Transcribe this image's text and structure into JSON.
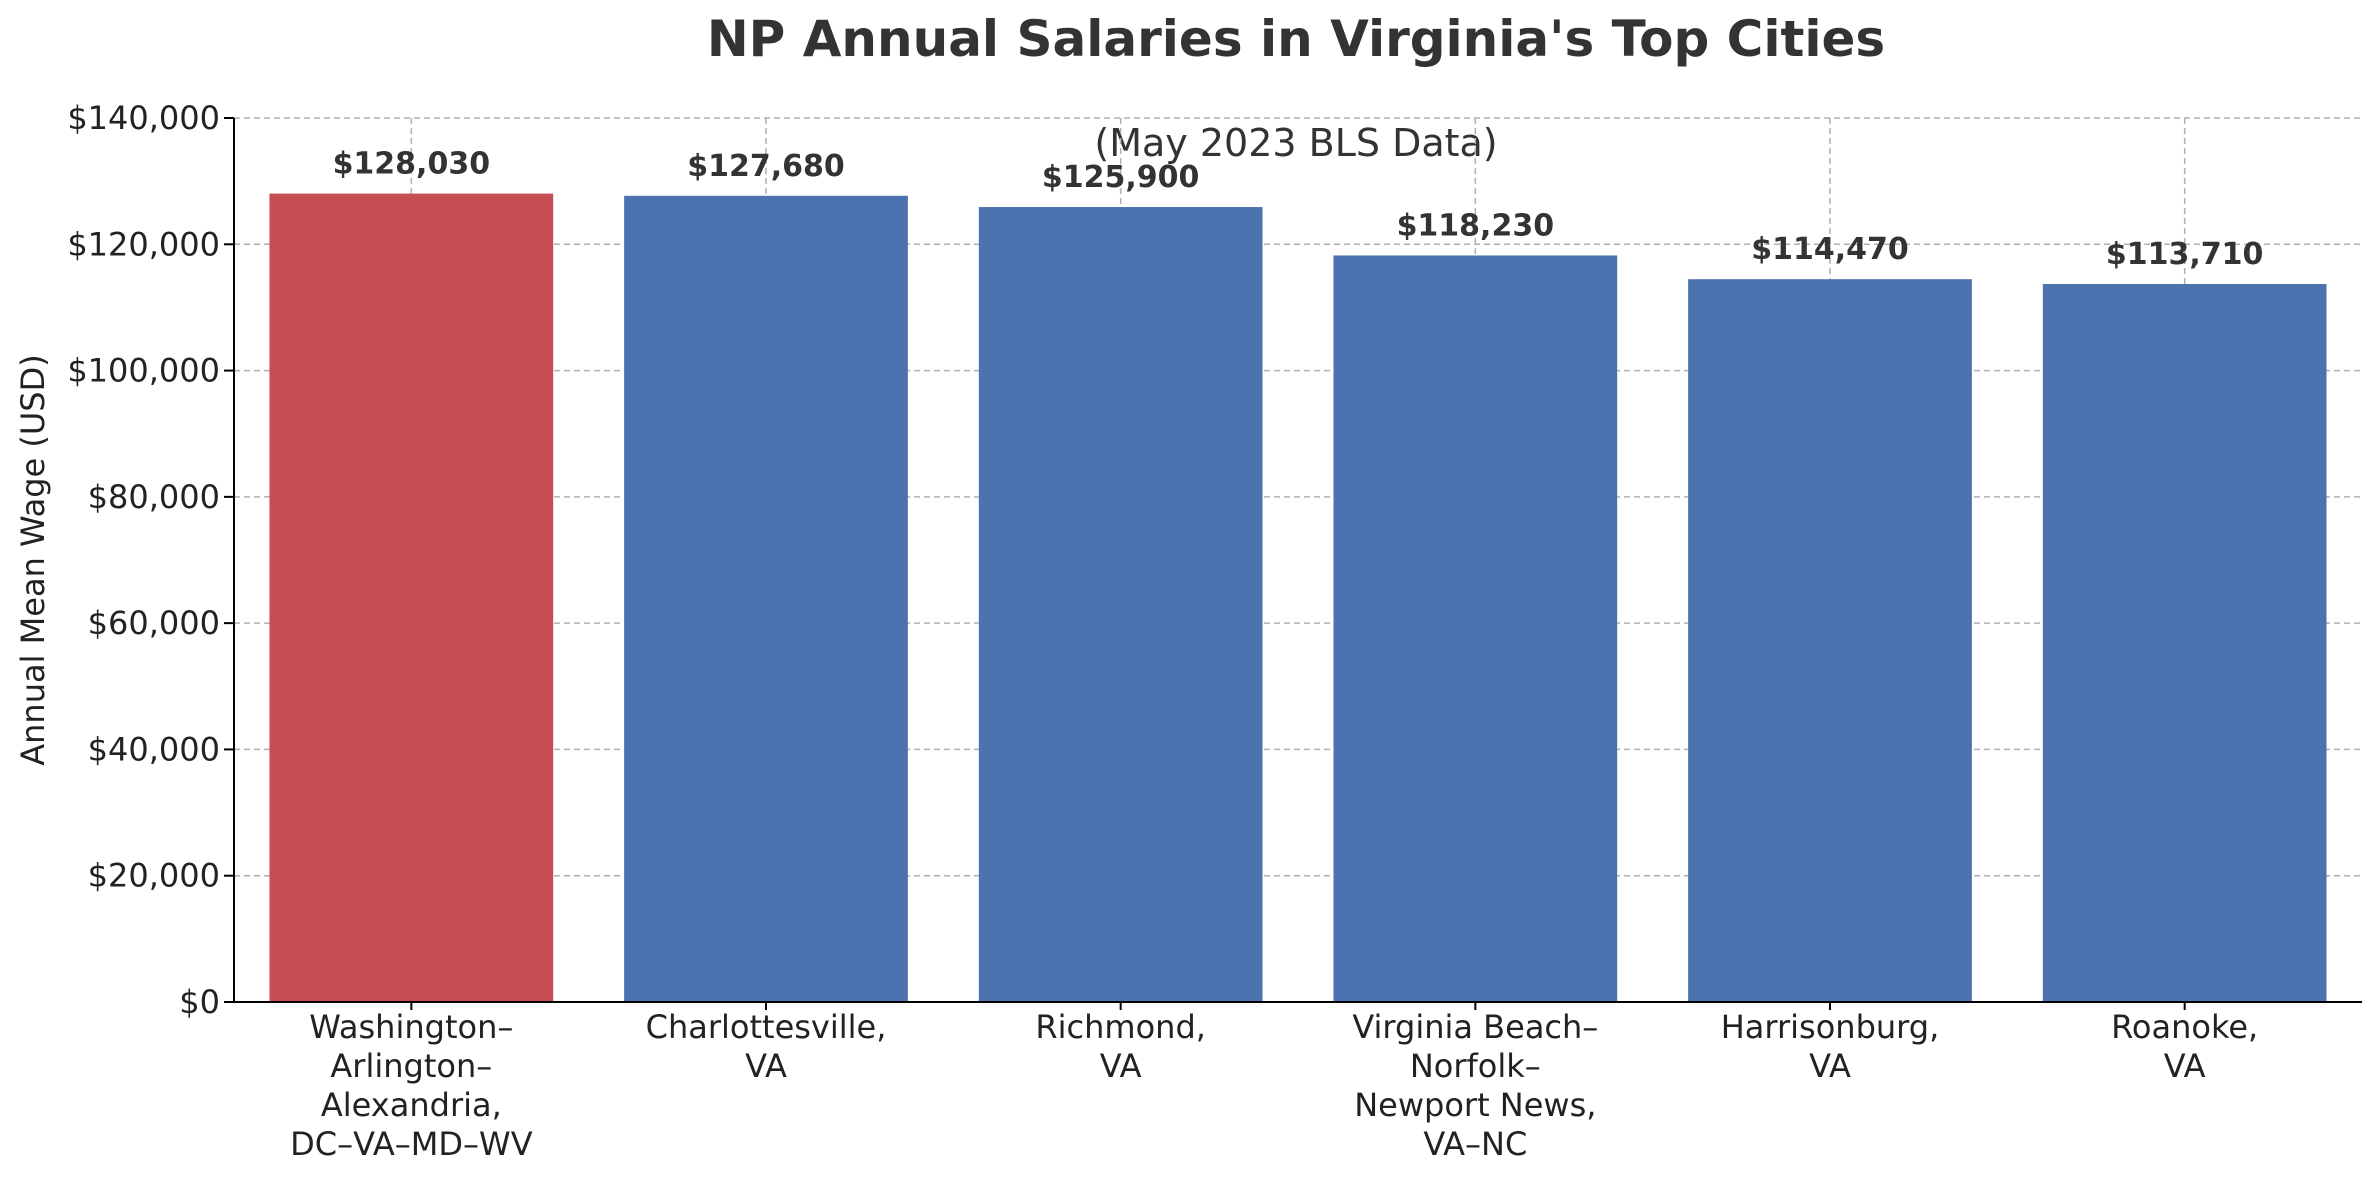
{
  "chart_data": {
    "type": "bar",
    "title": "NP Annual Salaries in Virginia's Top Cities",
    "subtitle": "(May 2023 BLS Data)",
    "xlabel": "",
    "ylabel": "Annual Mean Wage (USD)",
    "ylim": [
      0,
      140000
    ],
    "yticks": [
      {
        "value": 0,
        "label": "$0"
      },
      {
        "value": 20000,
        "label": "$20,000"
      },
      {
        "value": 40000,
        "label": "$40,000"
      },
      {
        "value": 60000,
        "label": "$60,000"
      },
      {
        "value": 80000,
        "label": "$80,000"
      },
      {
        "value": 100000,
        "label": "$100,000"
      },
      {
        "value": 120000,
        "label": "$120,000"
      },
      {
        "value": 140000,
        "label": "$140,000"
      }
    ],
    "categories": [
      [
        "Washington–",
        "Arlington–",
        "Alexandria,",
        "DC–VA–MD–WV"
      ],
      [
        "Charlottesville,",
        "VA"
      ],
      [
        "Richmond,",
        "VA"
      ],
      [
        "Virginia Beach–",
        "Norfolk–",
        "Newport News,",
        "VA–NC"
      ],
      [
        "Harrisonburg,",
        "VA"
      ],
      [
        "Roanoke,",
        "VA"
      ]
    ],
    "values": [
      128030,
      127680,
      125900,
      118230,
      114470,
      113710
    ],
    "data_labels": [
      "$128,030",
      "$127,680",
      "$125,900",
      "$118,230",
      "$114,470",
      "$113,710"
    ],
    "bar_colors": [
      "#c44e52",
      "#4c72b0",
      "#4c72b0",
      "#4c72b0",
      "#4c72b0",
      "#4c72b0"
    ],
    "grid": true,
    "legend": "none"
  }
}
